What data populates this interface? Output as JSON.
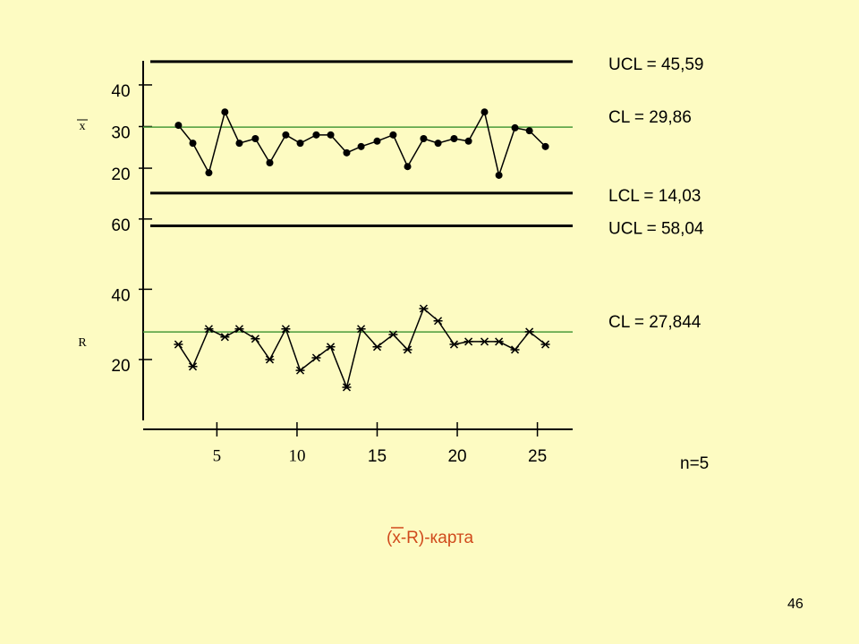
{
  "chart_data": [
    {
      "type": "line",
      "y_label": "x",
      "marker": "dot",
      "x": [
        2.6,
        3.5,
        4.5,
        5.5,
        6.4,
        7.4,
        8.3,
        9.3,
        10.2,
        11.2,
        12.1,
        13.1,
        14.0,
        15.0,
        16.0,
        16.9,
        17.9,
        18.8,
        19.8,
        20.7,
        21.7,
        22.6,
        23.6,
        24.5,
        25.5
      ],
      "values": [
        30.3,
        26.0,
        18.9,
        33.5,
        26.0,
        27.1,
        21.3,
        28.0,
        26.0,
        28.0,
        28.0,
        23.7,
        25.2,
        26.5,
        28.0,
        20.4,
        27.1,
        26.0,
        27.1,
        26.5,
        33.5,
        18.3,
        29.7,
        29.0,
        25.2
      ],
      "xlim": [
        0.4,
        27.2
      ],
      "ylim": [
        14,
        46
      ],
      "yticks": [
        20,
        30,
        40
      ],
      "control_lines": [
        {
          "label": "UCL = 45,59",
          "value": 45.59,
          "color": "#000000"
        },
        {
          "label": "CL = 29,86",
          "value": 29.86,
          "color": "#4a9a3a"
        },
        {
          "label": "LCL = 14,03",
          "value": 14.03,
          "color": "#000000"
        }
      ]
    },
    {
      "type": "line",
      "y_label": "R",
      "marker": "star",
      "x": [
        2.6,
        3.5,
        4.5,
        5.5,
        6.4,
        7.4,
        8.3,
        9.3,
        10.2,
        11.2,
        12.1,
        13.1,
        14.0,
        15.0,
        16.0,
        16.9,
        17.9,
        18.8,
        19.8,
        20.7,
        21.7,
        22.6,
        23.6,
        24.5,
        25.5
      ],
      "values": [
        24.3,
        18.0,
        28.7,
        26.4,
        28.7,
        25.9,
        20.0,
        28.7,
        16.9,
        20.5,
        23.6,
        12.1,
        28.7,
        23.6,
        27.1,
        22.8,
        34.5,
        31.0,
        24.3,
        25.1,
        25.1,
        25.1,
        22.8,
        27.9,
        24.3
      ],
      "xlim": [
        0.4,
        27.2
      ],
      "ylim": [
        3,
        62
      ],
      "yticks": [
        20,
        40,
        60
      ],
      "xticks": [
        5,
        10,
        15,
        20,
        25
      ],
      "control_lines": [
        {
          "label": "UCL = 58,04",
          "value": 58.04,
          "color": "#000000"
        },
        {
          "label": "CL = 27,844",
          "value": 27.844,
          "color": "#4a9a3a"
        }
      ]
    }
  ],
  "sample_size": "n=5",
  "caption": "(x-R)-карта",
  "page_number": "46"
}
